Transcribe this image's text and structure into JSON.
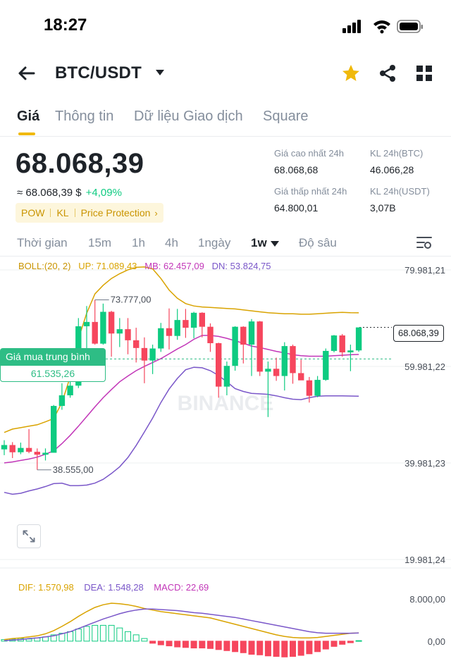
{
  "status_bar": {
    "time": "18:27"
  },
  "header": {
    "pair": "BTC/USDT",
    "icons": [
      "back-arrow-icon",
      "caret-down-icon",
      "star-icon",
      "share-icon",
      "grid-icon"
    ]
  },
  "tabs": [
    {
      "label": "Giá",
      "active": true
    },
    {
      "label": "Thông tin",
      "active": false
    },
    {
      "label": "Dữ liệu Giao dịch",
      "active": false
    },
    {
      "label": "Square",
      "active": false
    }
  ],
  "price": {
    "last": "68.068,39",
    "fiat": "≈ 68.068,39 $",
    "change": "+4,09%",
    "tags": [
      "POW",
      "KL",
      "Price Protection"
    ]
  },
  "stats": {
    "high_label": "Giá cao nhất 24h",
    "high_value": "68.068,68",
    "vol_btc_label": "KL 24h(BTC)",
    "vol_btc_value": "46.066,28",
    "low_label": "Giá thấp nhất 24h",
    "low_value": "64.800,01",
    "vol_usdt_label": "KL 24h(USDT)",
    "vol_usdt_value": "3,07B"
  },
  "intervals": [
    {
      "label": "Thời gian",
      "active": false
    },
    {
      "label": "15m",
      "active": false
    },
    {
      "label": "1h",
      "active": false
    },
    {
      "label": "4h",
      "active": false
    },
    {
      "label": "1ngày",
      "active": false
    },
    {
      "label": "1w",
      "active": true
    },
    {
      "label": "Độ sâu",
      "active": false
    }
  ],
  "boll": {
    "name": "BOLL:(20, 2)",
    "up": "UP: 71.089,43",
    "mb": "MB: 62.457,09",
    "dn": "DN: 53.824,75"
  },
  "macd": {
    "dif": "DIF: 1.570,98",
    "dea": "DEA: 1.548,28",
    "macd": "MACD: 22,69"
  },
  "chart_overlays": {
    "avg_buy_label": "Giá mua trung bình",
    "avg_buy_value": "61.535,26",
    "current_price": "68.068,39",
    "high_marker": "73.777,00",
    "low_marker": "38.555,00",
    "watermark": "BINANCE"
  },
  "colors": {
    "up": "#0ecb81",
    "down": "#f6465d",
    "accent": "#f0b90b",
    "boll_up": "#d9a300",
    "boll_mb": "#c236b8",
    "boll_dn": "#7a57c9",
    "avg": "#2ebd85"
  },
  "chart_data": {
    "type": "candlestick",
    "interval": "1w",
    "y_ticks": [
      "79.981,21",
      "59.981,22",
      "39.981,23",
      "19.981,24"
    ],
    "y_range": [
      19981.24,
      79981.21
    ],
    "macd_ticks": [
      "8.000,00",
      "0,00"
    ],
    "candles": [
      {
        "o": 42800,
        "h": 44700,
        "l": 41600,
        "c": 43700
      },
      {
        "o": 43700,
        "h": 44300,
        "l": 41000,
        "c": 42200
      },
      {
        "o": 42200,
        "h": 44200,
        "l": 41800,
        "c": 43100
      },
      {
        "o": 43100,
        "h": 47000,
        "l": 42000,
        "c": 42300
      },
      {
        "o": 42300,
        "h": 43000,
        "l": 38555,
        "c": 41700
      },
      {
        "o": 41700,
        "h": 43000,
        "l": 40500,
        "c": 42100
      },
      {
        "o": 42100,
        "h": 52000,
        "l": 42100,
        "c": 51800
      },
      {
        "o": 51800,
        "h": 56500,
        "l": 51000,
        "c": 54000
      },
      {
        "o": 54000,
        "h": 58500,
        "l": 53500,
        "c": 56000
      },
      {
        "o": 56000,
        "h": 70000,
        "l": 55500,
        "c": 68300
      },
      {
        "o": 68300,
        "h": 72500,
        "l": 62200,
        "c": 69200
      },
      {
        "o": 69200,
        "h": 73777,
        "l": 64500,
        "c": 64700
      },
      {
        "o": 64700,
        "h": 73000,
        "l": 64500,
        "c": 71300
      },
      {
        "o": 71300,
        "h": 71500,
        "l": 62000,
        "c": 66800
      },
      {
        "o": 66800,
        "h": 70000,
        "l": 64000,
        "c": 67700
      },
      {
        "o": 67700,
        "h": 70000,
        "l": 62500,
        "c": 65400
      },
      {
        "o": 65400,
        "h": 68000,
        "l": 60800,
        "c": 63800
      },
      {
        "o": 63800,
        "h": 66000,
        "l": 56500,
        "c": 61200
      },
      {
        "o": 61200,
        "h": 64500,
        "l": 58400,
        "c": 63700
      },
      {
        "o": 63700,
        "h": 69000,
        "l": 63000,
        "c": 67900
      },
      {
        "o": 67900,
        "h": 72000,
        "l": 63500,
        "c": 66300
      },
      {
        "o": 66300,
        "h": 71900,
        "l": 65500,
        "c": 69600
      },
      {
        "o": 69600,
        "h": 71900,
        "l": 65900,
        "c": 68000
      },
      {
        "o": 68000,
        "h": 71300,
        "l": 65800,
        "c": 71100
      },
      {
        "o": 71100,
        "h": 71200,
        "l": 66000,
        "c": 68200
      },
      {
        "o": 68200,
        "h": 68900,
        "l": 63000,
        "c": 64800
      },
      {
        "o": 64800,
        "h": 64900,
        "l": 53500,
        "c": 55800
      },
      {
        "o": 55800,
        "h": 61000,
        "l": 54000,
        "c": 60100
      },
      {
        "o": 60100,
        "h": 68300,
        "l": 59100,
        "c": 68200
      },
      {
        "o": 68200,
        "h": 68300,
        "l": 60600,
        "c": 64500
      },
      {
        "o": 64500,
        "h": 69800,
        "l": 58000,
        "c": 69300
      },
      {
        "o": 69300,
        "h": 69400,
        "l": 58000,
        "c": 58900
      },
      {
        "o": 58900,
        "h": 61000,
        "l": 49500,
        "c": 59500
      },
      {
        "o": 59500,
        "h": 61800,
        "l": 57000,
        "c": 58000
      },
      {
        "o": 58000,
        "h": 65000,
        "l": 55000,
        "c": 64200
      },
      {
        "o": 64200,
        "h": 64500,
        "l": 56400,
        "c": 58600
      },
      {
        "o": 58600,
        "h": 61400,
        "l": 57200,
        "c": 57100
      },
      {
        "o": 57100,
        "h": 57800,
        "l": 52500,
        "c": 53900
      },
      {
        "o": 53900,
        "h": 58000,
        "l": 53600,
        "c": 57200
      },
      {
        "o": 57200,
        "h": 63700,
        "l": 57000,
        "c": 63200
      },
      {
        "o": 63200,
        "h": 66500,
        "l": 62900,
        "c": 66400
      },
      {
        "o": 66400,
        "h": 66700,
        "l": 62000,
        "c": 62900
      },
      {
        "o": 62900,
        "h": 64500,
        "l": 59000,
        "c": 63300
      },
      {
        "o": 63300,
        "h": 68068.68,
        "l": 63000,
        "c": 68068.39
      }
    ],
    "boll_up": [
      46300,
      47000,
      47300,
      47600,
      47900,
      48500,
      49200,
      52500,
      57800,
      65700,
      71000,
      75000,
      76800,
      78200,
      79200,
      80000,
      80500,
      80600,
      80200,
      78200,
      75800,
      74100,
      73000,
      72500,
      72300,
      72200,
      72100,
      72000,
      71900,
      71700,
      71500,
      71300,
      71100,
      71000,
      70900,
      70900,
      70800,
      70800,
      70900,
      71000,
      71100,
      71200,
      71100,
      71089
    ],
    "boll_mb": [
      40000,
      40200,
      40500,
      40800,
      41200,
      41800,
      42500,
      44000,
      45700,
      47600,
      49600,
      51600,
      53500,
      55200,
      56800,
      58000,
      59100,
      60000,
      60800,
      61600,
      62600,
      63600,
      64500,
      65600,
      66400,
      66400,
      66200,
      65800,
      65300,
      64800,
      64200,
      63900,
      63500,
      63100,
      62800,
      62400,
      62200,
      62100,
      62100,
      62100,
      62200,
      62300,
      62400,
      62457
    ],
    "boll_dn": [
      33900,
      33500,
      33700,
      34200,
      34600,
      35100,
      35700,
      35800,
      35300,
      35300,
      35400,
      35800,
      36600,
      37800,
      39200,
      41100,
      43600,
      46400,
      49300,
      52500,
      55300,
      57500,
      59300,
      59800,
      59700,
      59100,
      58100,
      56800,
      55400,
      54800,
      54400,
      54300,
      54200,
      53900,
      53500,
      53200,
      53100,
      53500,
      53800,
      53900,
      53900,
      53900,
      53850,
      53825
    ],
    "macd_hist": [
      0.3,
      0.4,
      0.5,
      0.4,
      0.6,
      0.8,
      1.2,
      1.5,
      1.8,
      2.3,
      2.8,
      3.0,
      3.0,
      3.0,
      2.5,
      1.8,
      1.2,
      0.5,
      -0.4,
      -0.7,
      -0.9,
      -1.1,
      -1.2,
      -1.3,
      -1.3,
      -1.4,
      -1.6,
      -1.8,
      -2.0,
      -2.2,
      -2.5,
      -2.6,
      -2.8,
      -2.9,
      -3.0,
      -2.9,
      -2.7,
      -2.4,
      -2.0,
      -1.5,
      -1.0,
      -0.6,
      -0.3,
      0.1
    ],
    "macd_dif": [
      0.3,
      0.5,
      0.6,
      0.8,
      1.0,
      1.4,
      2.0,
      2.8,
      3.7,
      4.7,
      5.6,
      6.4,
      6.9,
      7.2,
      7.1,
      6.9,
      6.6,
      6.2,
      5.9,
      5.6,
      5.4,
      5.2,
      5.0,
      4.8,
      4.6,
      4.4,
      4.0,
      3.6,
      3.2,
      2.8,
      2.4,
      2.0,
      1.6,
      1.2,
      0.9,
      0.7,
      0.6,
      0.6,
      0.7,
      0.9,
      1.1,
      1.3,
      1.5,
      1.57
    ],
    "macd_dea": [
      0.1,
      0.2,
      0.3,
      0.5,
      0.6,
      0.8,
      1.0,
      1.4,
      1.8,
      2.4,
      3.0,
      3.6,
      4.2,
      4.7,
      5.2,
      5.6,
      5.9,
      6.1,
      6.1,
      6.0,
      5.9,
      5.8,
      5.6,
      5.4,
      5.3,
      5.1,
      4.9,
      4.7,
      4.5,
      4.2,
      3.9,
      3.6,
      3.3,
      3.0,
      2.7,
      2.4,
      2.1,
      1.8,
      1.6,
      1.5,
      1.5,
      1.5,
      1.5,
      1.55
    ],
    "macd_range": [
      -3.5,
      8
    ]
  }
}
